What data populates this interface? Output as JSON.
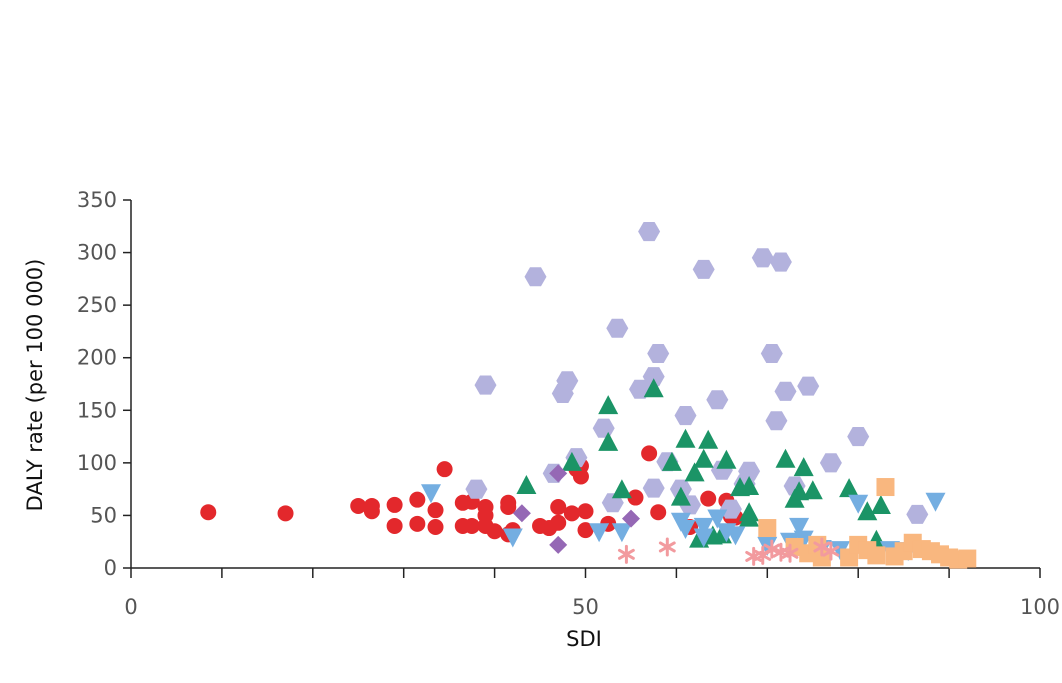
{
  "chart_data": {
    "type": "scatter",
    "title": "",
    "xlabel": "SDI",
    "ylabel": "DALY rate (per 100 000)",
    "xlim": [
      0,
      100
    ],
    "ylim": [
      0,
      350
    ],
    "x_major_ticks": [
      0,
      50,
      100
    ],
    "x_minor_ticks": [
      10,
      20,
      30,
      40,
      60,
      70,
      80,
      90
    ],
    "y_ticks": [
      0,
      50,
      100,
      150,
      200,
      250,
      300,
      350
    ],
    "x_tick_labels": [
      "0",
      "50",
      "100"
    ],
    "y_tick_labels": [
      "0",
      "50",
      "100",
      "150",
      "200",
      "250",
      "300",
      "350"
    ],
    "grid": false,
    "legend": "none",
    "series": [
      {
        "marker": "circle",
        "color": "#e3282c",
        "points": [
          [
            8.5,
            53
          ],
          [
            17,
            52
          ],
          [
            25,
            59
          ],
          [
            26.5,
            59
          ],
          [
            26.5,
            54
          ],
          [
            29,
            60
          ],
          [
            29,
            40
          ],
          [
            31.5,
            65
          ],
          [
            31.5,
            42
          ],
          [
            33.5,
            55
          ],
          [
            33.5,
            39
          ],
          [
            34.5,
            94
          ],
          [
            36.5,
            40
          ],
          [
            36.5,
            62
          ],
          [
            37.5,
            63
          ],
          [
            37.5,
            40
          ],
          [
            39,
            58
          ],
          [
            39,
            50
          ],
          [
            39,
            40
          ],
          [
            40,
            35
          ],
          [
            41.5,
            62
          ],
          [
            41.5,
            58
          ],
          [
            41.5,
            32
          ],
          [
            42,
            36
          ],
          [
            45,
            40
          ],
          [
            46,
            38
          ],
          [
            47,
            43
          ],
          [
            47,
            58
          ],
          [
            48.5,
            52
          ],
          [
            49,
            94
          ],
          [
            49.5,
            97
          ],
          [
            49.5,
            87
          ],
          [
            50,
            54
          ],
          [
            50,
            36
          ],
          [
            52.5,
            42
          ],
          [
            55.5,
            67
          ],
          [
            57,
            109
          ],
          [
            58,
            53
          ],
          [
            61.5,
            39
          ],
          [
            63.5,
            66
          ],
          [
            65.5,
            64
          ],
          [
            66,
            49
          ],
          [
            66.5,
            48
          ]
        ]
      },
      {
        "marker": "hexagon",
        "color": "#b3b2dd",
        "points": [
          [
            39,
            174
          ],
          [
            38,
            75
          ],
          [
            44.5,
            277
          ],
          [
            46.5,
            90
          ],
          [
            47.5,
            166
          ],
          [
            48,
            178
          ],
          [
            49,
            105
          ],
          [
            52,
            133
          ],
          [
            53,
            62
          ],
          [
            53.5,
            228
          ],
          [
            56,
            170
          ],
          [
            57,
            320
          ],
          [
            57.5,
            76
          ],
          [
            57.5,
            182
          ],
          [
            58,
            204
          ],
          [
            59,
            101
          ],
          [
            60.5,
            75
          ],
          [
            61,
            145
          ],
          [
            61.5,
            60
          ],
          [
            63,
            284
          ],
          [
            64.5,
            160
          ],
          [
            65,
            93
          ],
          [
            66,
            56
          ],
          [
            67.5,
            80
          ],
          [
            68,
            92
          ],
          [
            69.5,
            295
          ],
          [
            70.5,
            204
          ],
          [
            71,
            140
          ],
          [
            71.5,
            291
          ],
          [
            72,
            168
          ],
          [
            73,
            78
          ],
          [
            74.5,
            173
          ],
          [
            77,
            100
          ],
          [
            80,
            125
          ],
          [
            86.5,
            51
          ]
        ]
      },
      {
        "marker": "triangle-up",
        "color": "#1b9466",
        "points": [
          [
            43.5,
            78
          ],
          [
            48.5,
            100
          ],
          [
            52.5,
            154
          ],
          [
            52.5,
            119
          ],
          [
            54,
            74
          ],
          [
            57.5,
            170
          ],
          [
            59.5,
            100
          ],
          [
            60.5,
            67
          ],
          [
            61,
            122
          ],
          [
            62,
            90
          ],
          [
            62.5,
            27
          ],
          [
            63,
            103
          ],
          [
            63.5,
            121
          ],
          [
            64,
            30
          ],
          [
            65,
            31
          ],
          [
            65.5,
            102
          ],
          [
            67,
            76
          ],
          [
            68,
            77
          ],
          [
            68,
            52
          ],
          [
            68,
            47
          ],
          [
            72,
            103
          ],
          [
            73,
            65
          ],
          [
            73.5,
            72
          ],
          [
            74,
            95
          ],
          [
            75,
            73
          ],
          [
            79,
            75
          ],
          [
            81,
            53
          ],
          [
            82,
            26
          ],
          [
            82.5,
            59
          ]
        ]
      },
      {
        "marker": "triangle-down",
        "color": "#74aee1",
        "points": [
          [
            33,
            72
          ],
          [
            42,
            30
          ],
          [
            51.5,
            35
          ],
          [
            54,
            35
          ],
          [
            60.5,
            45
          ],
          [
            61,
            38
          ],
          [
            63,
            40
          ],
          [
            63,
            30
          ],
          [
            64.5,
            48
          ],
          [
            65.5,
            35
          ],
          [
            66.5,
            32
          ],
          [
            70,
            22
          ],
          [
            72.5,
            26
          ],
          [
            73.5,
            40
          ],
          [
            74,
            28
          ],
          [
            76,
            19
          ],
          [
            78,
            18
          ],
          [
            80,
            62
          ],
          [
            83.5,
            18
          ],
          [
            85.5,
            17
          ],
          [
            88.5,
            64
          ]
        ]
      },
      {
        "marker": "diamond",
        "color": "#9568b5",
        "points": [
          [
            43,
            52
          ],
          [
            47,
            22
          ],
          [
            47,
            90
          ],
          [
            55,
            47
          ]
        ]
      },
      {
        "marker": "square",
        "color": "#f9b77f",
        "points": [
          [
            70,
            38
          ],
          [
            73,
            20
          ],
          [
            74.5,
            14
          ],
          [
            75.5,
            22
          ],
          [
            76,
            10
          ],
          [
            79,
            10
          ],
          [
            80,
            22
          ],
          [
            81,
            17
          ],
          [
            82,
            12
          ],
          [
            83,
            77
          ],
          [
            84,
            11
          ],
          [
            85,
            16
          ],
          [
            86,
            24
          ],
          [
            87,
            18
          ],
          [
            88,
            16
          ],
          [
            89,
            13
          ],
          [
            90,
            10
          ],
          [
            91,
            8
          ],
          [
            92,
            9
          ]
        ]
      },
      {
        "marker": "asterisk",
        "color": "#f29a9e",
        "points": [
          [
            54.5,
            13
          ],
          [
            59,
            20
          ],
          [
            68.5,
            11
          ],
          [
            69.5,
            12
          ],
          [
            70.5,
            18
          ],
          [
            71.5,
            15
          ],
          [
            72.5,
            14
          ],
          [
            76,
            20
          ],
          [
            77,
            16
          ]
        ]
      }
    ]
  }
}
